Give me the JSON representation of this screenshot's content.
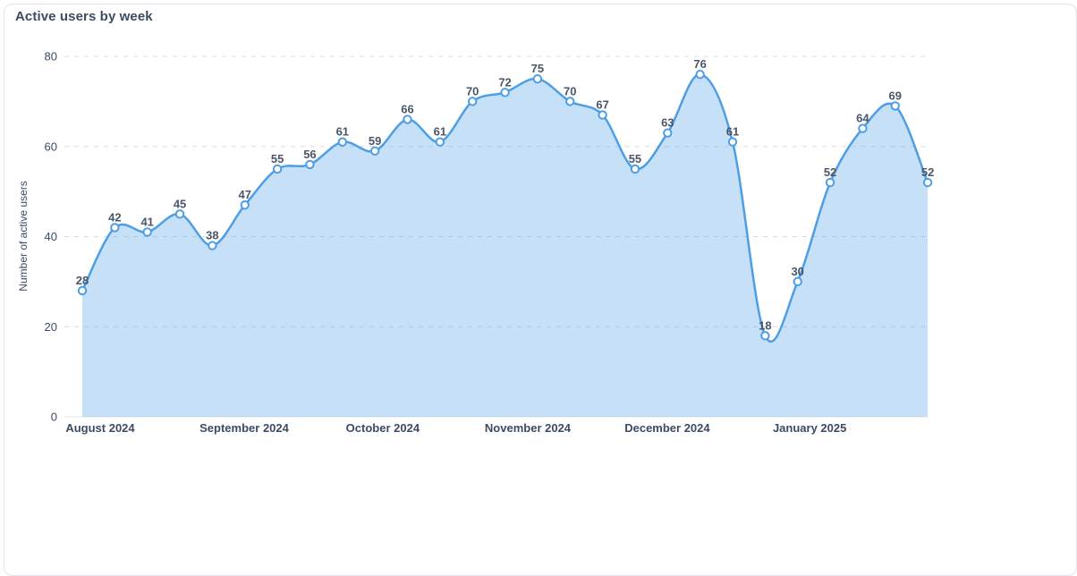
{
  "card": {
    "title": "Active users by week"
  },
  "chart_data": {
    "type": "area",
    "title": "Active users by week",
    "xlabel": "",
    "ylabel": "Number of active users",
    "x_tick_labels": [
      "August 2024",
      "September 2024",
      "October 2024",
      "November 2024",
      "December 2024",
      "January 2025"
    ],
    "y_ticks": [
      0,
      20,
      40,
      60,
      80
    ],
    "ylim": [
      0,
      80
    ],
    "values": [
      28,
      42,
      41,
      45,
      38,
      47,
      55,
      56,
      61,
      59,
      66,
      61,
      70,
      72,
      75,
      70,
      67,
      55,
      63,
      76,
      61,
      18,
      30,
      52,
      64,
      69,
      52
    ],
    "month_tick_indices": [
      0.55,
      4.98,
      9.24,
      13.7,
      17.99,
      22.37
    ],
    "legend": "none",
    "grid": "horizontal-dashed",
    "marker": "circle-open",
    "colors": {
      "line": "#4d9ee4",
      "area": "rgba(77,158,229,0.32)",
      "marker_fill": "#ffffff",
      "point_label": "#4b5669",
      "axis_text": "#3c4b64",
      "grid": "#dcdce0",
      "zero_line": "#e4e4e8",
      "title": "#3d4c63",
      "card_border": "#e2e2e8"
    }
  }
}
